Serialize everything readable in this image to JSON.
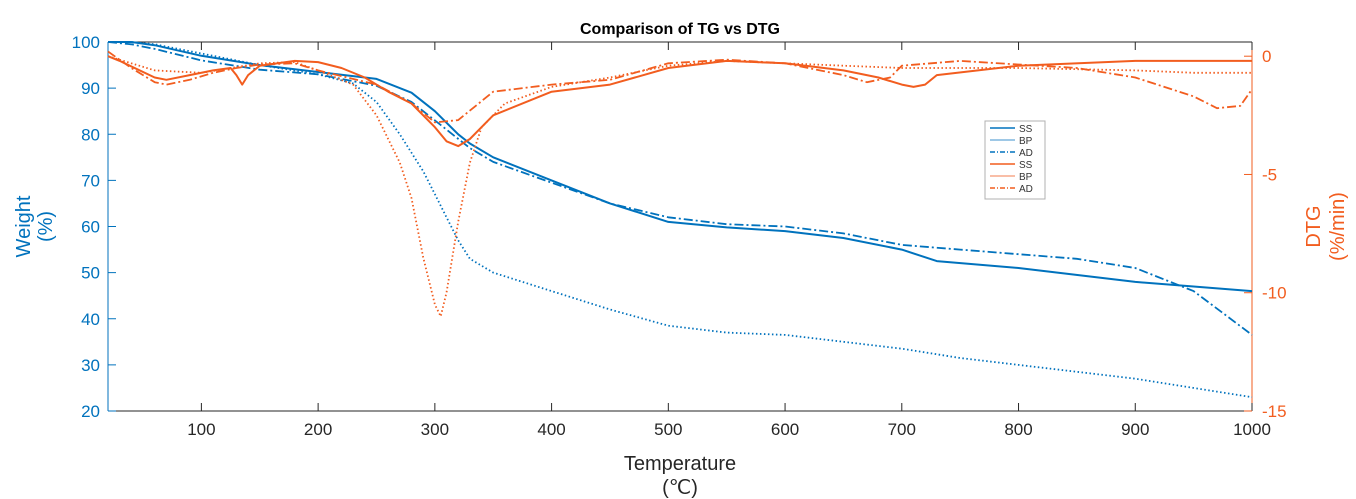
{
  "chart_data": {
    "type": "line",
    "title": "Comparison of TG vs DTG",
    "xlabel": "Temperature",
    "xlabel_unit": "(℃)",
    "y_left_label": "Weight",
    "y_left_unit": "(%)",
    "y_right_label": "DTG",
    "y_right_unit": "(%/min)",
    "xlim": [
      20,
      1000
    ],
    "ylim_left": [
      20,
      100
    ],
    "ylim_right": [
      -15,
      0.6
    ],
    "x_ticks": [
      100,
      200,
      300,
      400,
      500,
      600,
      700,
      800,
      900,
      1000
    ],
    "y_left_ticks": [
      20,
      30,
      40,
      50,
      60,
      70,
      80,
      90,
      100
    ],
    "y_right_ticks": [
      -15,
      -10,
      -5,
      0
    ],
    "grid": false,
    "legend_position": "upper-right",
    "colors": {
      "tg": "#0072BD",
      "tg_light": "#7FB5DE",
      "dtg": "#F25D1F",
      "dtg_light": "#F7A98A",
      "axis_left": "#0072BD",
      "axis_right": "#F25D1F"
    },
    "series": [
      {
        "name": "SS",
        "axis": "left",
        "style": "solid",
        "x": [
          20,
          40,
          60,
          100,
          150,
          200,
          250,
          280,
          300,
          320,
          330,
          350,
          400,
          450,
          500,
          550,
          600,
          650,
          700,
          730,
          800,
          900,
          1000
        ],
        "y": [
          100,
          100,
          99.3,
          97,
          95,
          93.5,
          92,
          89,
          85,
          80,
          78,
          75,
          70,
          65,
          61,
          59.8,
          59,
          57.5,
          55,
          52.5,
          51,
          48,
          46
        ]
      },
      {
        "name": "BP",
        "axis": "left",
        "style": "dotted",
        "x": [
          20,
          40,
          60,
          100,
          150,
          200,
          230,
          250,
          270,
          290,
          300,
          310,
          320,
          330,
          350,
          400,
          450,
          500,
          550,
          600,
          650,
          700,
          750,
          800,
          900,
          1000
        ],
        "y": [
          100,
          100,
          99.5,
          97.5,
          95,
          93,
          91,
          87,
          80,
          72,
          67,
          62,
          57,
          53,
          50,
          46,
          42,
          38.5,
          37,
          36.5,
          35,
          33.5,
          31.5,
          30,
          27,
          23
        ]
      },
      {
        "name": "AD",
        "axis": "left",
        "style": "dashdot",
        "x": [
          20,
          40,
          60,
          100,
          150,
          200,
          250,
          280,
          300,
          330,
          350,
          400,
          450,
          500,
          550,
          600,
          650,
          700,
          750,
          800,
          850,
          900,
          950,
          1000
        ],
        "y": [
          100,
          99.5,
          98.5,
          96,
          94,
          93,
          90.5,
          87,
          83,
          77,
          74,
          69.5,
          65,
          62,
          60.5,
          60,
          58.5,
          56,
          55,
          54,
          53,
          51,
          46,
          36.5
        ]
      },
      {
        "name": "SS",
        "axis": "right",
        "style": "solid",
        "x": [
          20,
          30,
          60,
          70,
          90,
          110,
          125,
          130,
          135,
          140,
          150,
          180,
          200,
          220,
          240,
          260,
          280,
          300,
          310,
          320,
          330,
          350,
          400,
          450,
          500,
          550,
          600,
          650,
          680,
          700,
          710,
          720,
          730,
          800,
          900,
          1000
        ],
        "y": [
          0,
          -0.2,
          -0.9,
          -1.0,
          -0.8,
          -0.6,
          -0.5,
          -0.8,
          -1.2,
          -0.8,
          -0.4,
          -0.2,
          -0.25,
          -0.5,
          -0.9,
          -1.5,
          -2.0,
          -3.0,
          -3.6,
          -3.8,
          -3.5,
          -2.5,
          -1.5,
          -1.2,
          -0.5,
          -0.2,
          -0.3,
          -0.6,
          -0.9,
          -1.2,
          -1.3,
          -1.2,
          -0.8,
          -0.4,
          -0.2,
          -0.2
        ]
      },
      {
        "name": "BP",
        "axis": "right",
        "style": "dotted",
        "x": [
          20,
          60,
          100,
          150,
          180,
          200,
          230,
          250,
          270,
          280,
          290,
          300,
          305,
          310,
          320,
          330,
          340,
          360,
          400,
          450,
          500,
          550,
          600,
          650,
          700,
          800,
          900,
          950,
          1000
        ],
        "y": [
          0,
          -0.6,
          -0.7,
          -0.3,
          -0.25,
          -0.6,
          -1.2,
          -2.5,
          -4.5,
          -6,
          -8.5,
          -10.5,
          -11,
          -10,
          -7,
          -4.5,
          -3,
          -2,
          -1.3,
          -0.9,
          -0.4,
          -0.2,
          -0.3,
          -0.4,
          -0.5,
          -0.5,
          -0.6,
          -0.7,
          -0.7
        ]
      },
      {
        "name": "AD",
        "axis": "right",
        "style": "dashdot",
        "x": [
          20,
          40,
          60,
          70,
          90,
          110,
          130,
          150,
          180,
          200,
          250,
          280,
          300,
          320,
          330,
          350,
          400,
          450,
          500,
          550,
          600,
          650,
          670,
          690,
          700,
          750,
          800,
          850,
          900,
          950,
          970,
          990,
          1000
        ],
        "y": [
          0.2,
          -0.5,
          -1.1,
          -1.2,
          -1.0,
          -0.7,
          -0.5,
          -0.35,
          -0.3,
          -0.6,
          -1.2,
          -2.0,
          -2.8,
          -2.7,
          -2.3,
          -1.5,
          -1.2,
          -1.0,
          -0.3,
          -0.15,
          -0.3,
          -0.8,
          -1.1,
          -0.9,
          -0.4,
          -0.2,
          -0.35,
          -0.5,
          -0.9,
          -1.7,
          -2.2,
          -2.1,
          -1.4
        ]
      }
    ]
  }
}
